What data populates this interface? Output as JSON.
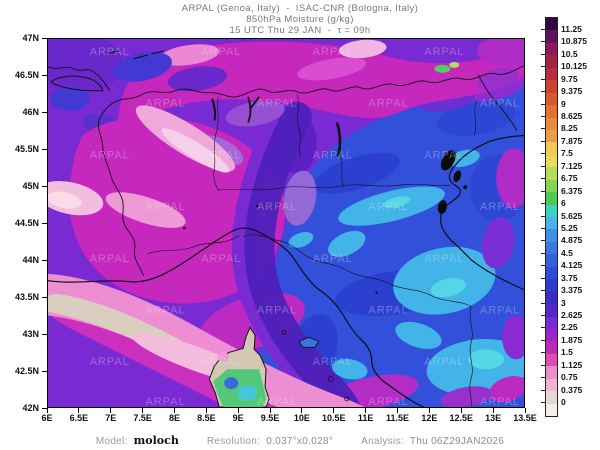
{
  "header": {
    "line1": "ARPAL (Genoa, Italy)  -  ISAC-CNR (Bologna, Italy)",
    "line2": "850hPa Moisture (g/kg)",
    "line3": "15 UTC Thu 29 JAN  -  τ = 09h"
  },
  "axes": {
    "x_ticks": [
      "6E",
      "6.5E",
      "7E",
      "7.5E",
      "8E",
      "8.5E",
      "9E",
      "9.5E",
      "10E",
      "10.5E",
      "11E",
      "11.5E",
      "12E",
      "12.5E",
      "13E",
      "13.5E"
    ],
    "y_ticks": [
      "47N",
      "46.5N",
      "46N",
      "45.5N",
      "45N",
      "44.5N",
      "44N",
      "43.5N",
      "43N",
      "42.5N",
      "42N"
    ]
  },
  "colorbar": {
    "tick_labels": [
      "11.25",
      "10.875",
      "10.5",
      "10.125",
      "9.75",
      "9.375",
      "9",
      "8.625",
      "8.25",
      "7.875",
      "7.5",
      "7.125",
      "6.75",
      "6.375",
      "6",
      "5.625",
      "5.25",
      "4.875",
      "4.5",
      "4.125",
      "3.75",
      "3.375",
      "3",
      "2.625",
      "2.25",
      "1.875",
      "1.5",
      "1.125",
      "0.75",
      "0.375",
      "0"
    ],
    "cell_colors_top_to_bottom": [
      "#330540",
      "#5e1260",
      "#8c1a5a",
      "#a42345",
      "#ba2d3a",
      "#cc4330",
      "#d95a30",
      "#e37134",
      "#ea883c",
      "#f09c45",
      "#f2ca56",
      "#ead95c",
      "#b8dc5a",
      "#84d455",
      "#4ccc4e",
      "#3bd2c4",
      "#48b4e8",
      "#3e90e4",
      "#3a76e0",
      "#3560dc",
      "#2f4cd8",
      "#2c3cd0",
      "#3a2cc6",
      "#5526c8",
      "#7a28d4",
      "#9e26c8",
      "#c028b8",
      "#dc4cb4",
      "#ec8cc8",
      "#f0b4d0",
      "#e6d8d0",
      "#f3efe8"
    ]
  },
  "map": {
    "watermark_text": "ARPAL",
    "lon_range": [
      "6E",
      "13.5E"
    ],
    "lat_range": [
      "42N",
      "47N"
    ]
  },
  "footer": {
    "model_label": "Model:",
    "model_value": "moloch",
    "resolution_label": "Resolution:",
    "resolution_value": "0.037°x0.028°",
    "analysis_label": "Analysis:",
    "analysis_value": "Thu 06Z29JAN2026"
  }
}
